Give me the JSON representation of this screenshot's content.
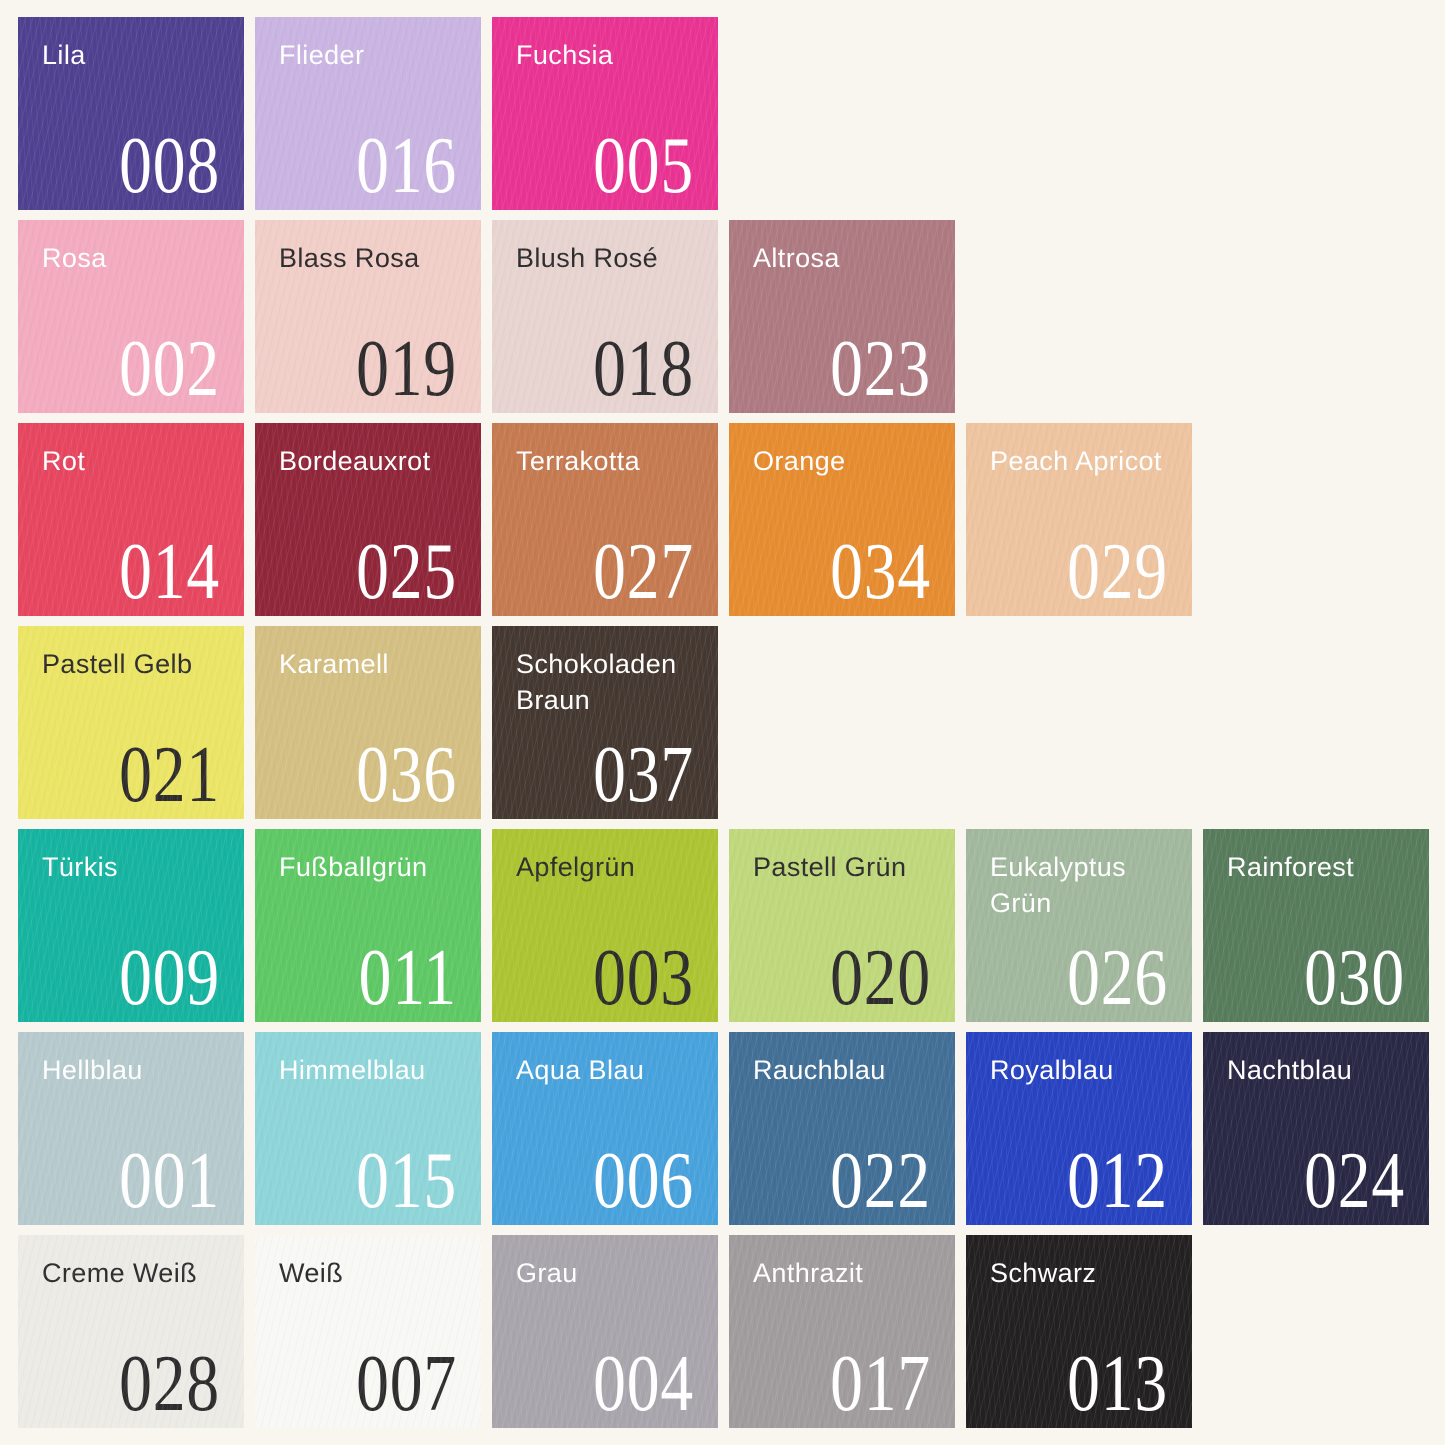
{
  "page": {
    "background": "#f8f6ef",
    "description": "Felt color swatch chart with German color names and article numbers"
  },
  "text_colors": {
    "light": "#ffffff",
    "dark": "#2e2c2d"
  },
  "swatch_rows": [
    [
      {
        "label": "Lila",
        "code": "008",
        "color": "#4f4190",
        "text": "light"
      },
      {
        "label": "Flieder",
        "code": "016",
        "color": "#c9b4e2",
        "text": "light"
      },
      {
        "label": "Fuchsia",
        "code": "005",
        "color": "#e93392",
        "text": "light"
      }
    ],
    [
      {
        "label": "Rosa",
        "code": "002",
        "color": "#f3abbf",
        "text": "light"
      },
      {
        "label": "Blass Rosa",
        "code": "019",
        "color": "#f1cec8",
        "text": "dark"
      },
      {
        "label": "Blush Rosé",
        "code": "018",
        "color": "#e7d4d1",
        "text": "dark"
      },
      {
        "label": "Altrosa",
        "code": "023",
        "color": "#ae7a81",
        "text": "light"
      }
    ],
    [
      {
        "label": "Rot",
        "code": "014",
        "color": "#e6465f",
        "text": "light"
      },
      {
        "label": "Bordeauxrot",
        "code": "025",
        "color": "#90263a",
        "text": "light"
      },
      {
        "label": "Terrakotta",
        "code": "027",
        "color": "#c57a50",
        "text": "light"
      },
      {
        "label": "Orange",
        "code": "034",
        "color": "#e68c30",
        "text": "light"
      },
      {
        "label": "Peach Apricot",
        "code": "029",
        "color": "#eec4a0",
        "text": "light"
      }
    ],
    [
      {
        "label": "Pastell Gelb",
        "code": "021",
        "color": "#ebe566",
        "text": "dark"
      },
      {
        "label": "Karamell",
        "code": "036",
        "color": "#d4bf83",
        "text": "light"
      },
      {
        "label": "Schokoladen Braun",
        "code": "037",
        "color": "#443831",
        "text": "light"
      }
    ],
    [
      {
        "label": "Türkis",
        "code": "009",
        "color": "#16b4a0",
        "text": "light"
      },
      {
        "label": "Fußballgrün",
        "code": "011",
        "color": "#5ec865",
        "text": "light"
      },
      {
        "label": "Apfelgrün",
        "code": "003",
        "color": "#acc432",
        "text": "dark"
      },
      {
        "label": "Pastell Grün",
        "code": "020",
        "color": "#c0d87c",
        "text": "dark"
      },
      {
        "label": "Eukalyptus Grün",
        "code": "026",
        "color": "#a2b89e",
        "text": "light"
      },
      {
        "label": "Rainforest",
        "code": "030",
        "color": "#577c5c",
        "text": "light"
      }
    ],
    [
      {
        "label": "Hellblau",
        "code": "001",
        "color": "#b6cacd",
        "text": "light"
      },
      {
        "label": "Himmelblau",
        "code": "015",
        "color": "#8ed5d9",
        "text": "light"
      },
      {
        "label": "Aqua Blau",
        "code": "006",
        "color": "#48a2dc",
        "text": "light"
      },
      {
        "label": "Rauchblau",
        "code": "022",
        "color": "#426f96",
        "text": "light"
      },
      {
        "label": "Royalblau",
        "code": "012",
        "color": "#2843c1",
        "text": "light"
      },
      {
        "label": "Nachtblau",
        "code": "024",
        "color": "#292845",
        "text": "light"
      }
    ],
    [
      {
        "label": "Creme Weiß",
        "code": "028",
        "color": "#ecebe6",
        "text": "dark"
      },
      {
        "label": "Weiß",
        "code": "007",
        "color": "#f8f8f5",
        "text": "dark"
      },
      {
        "label": "Grau",
        "code": "004",
        "color": "#a9a5ac",
        "text": "light"
      },
      {
        "label": "Anthrazit",
        "code": "017",
        "color": "#a09c9d",
        "text": "light"
      },
      {
        "label": "Schwarz",
        "code": "013",
        "color": "#232021",
        "text": "light"
      }
    ]
  ]
}
